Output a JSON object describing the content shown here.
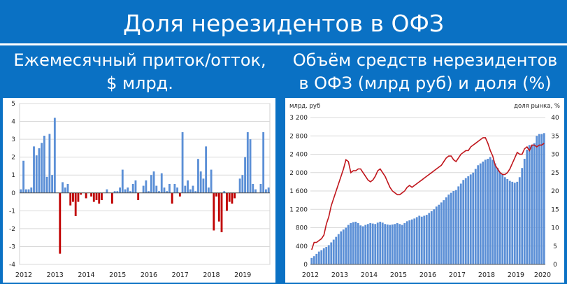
{
  "header": {
    "title": "Доля нерезидентов в ОФЗ",
    "left_subtitle_line1": "Ежемесячный приток/отток,",
    "left_subtitle_line2": "$ млрд.",
    "right_subtitle_line1": "Объём средств нерезидентов",
    "right_subtitle_line2": "в ОФЗ (млрд руб) и доля (%)"
  },
  "colors": {
    "background": "#0a71c4",
    "bar_positive": "#5b8fd6",
    "bar_negative": "#c00000",
    "line": "#c0161c",
    "grid": "#d9d9d9"
  },
  "chart_data": [
    {
      "type": "bar",
      "ylim": [
        -4,
        5
      ],
      "yticks": [
        "5",
        "4",
        "3",
        "2",
        "1",
        "0",
        "-1",
        "-2",
        "-3",
        "-4"
      ],
      "xticks": [
        "2012",
        "2013",
        "2014",
        "2015",
        "2016",
        "2017",
        "2018",
        "2019"
      ],
      "x_start": 2012,
      "grid": true,
      "values": [
        0.2,
        1.8,
        0.2,
        0.2,
        0.3,
        2.6,
        2.1,
        2.5,
        2.8,
        3.2,
        0.9,
        3.3,
        1.0,
        4.2,
        0,
        -3.4,
        0.6,
        0.3,
        0.5,
        -0.7,
        -0.5,
        -1.3,
        -0.5,
        -0.1,
        0,
        -0.3,
        0,
        -0.2,
        -0.5,
        -0.4,
        -0.6,
        -0.4,
        0,
        0.2,
        0,
        -0.6,
        0.1,
        0.1,
        0.3,
        1.3,
        0.2,
        0.3,
        0.1,
        0.5,
        0.7,
        -0.4,
        0,
        0.4,
        0.7,
        0.1,
        1.0,
        1.2,
        0.4,
        0.1,
        1.1,
        0.3,
        0.1,
        0.5,
        -0.6,
        0.5,
        0.3,
        -0.2,
        3.4,
        0.4,
        0.7,
        0.2,
        0.4,
        0.1,
        1.9,
        1.2,
        0.8,
        2.6,
        0.3,
        1.3,
        -2.1,
        -0.2,
        -1.6,
        -2.2,
        0.1,
        -1.0,
        -0.5,
        -0.6,
        -0.3,
        0,
        0.8,
        1.0,
        2.0,
        3.4,
        3.0,
        0.5,
        0.2,
        0,
        0.5,
        3.4,
        0.2,
        0.3
      ]
    },
    {
      "type": "bar+line",
      "ylabel_left": "млрд. руб",
      "ylabel_right": "доля рынка, %",
      "ylim_left": [
        0,
        3200
      ],
      "ylim_right": [
        0,
        40
      ],
      "yticks_left": [
        "3 200",
        "2 800",
        "2 400",
        "2 000",
        "1 600",
        "1 200",
        "800",
        "400",
        "0"
      ],
      "yticks_right": [
        "40",
        "35",
        "30",
        "25",
        "20",
        "15",
        "10",
        "5",
        "0"
      ],
      "xticks": [
        "2012",
        "2013",
        "2014",
        "2015",
        "2016",
        "2017",
        "2018",
        "2019",
        "2020"
      ],
      "x_start": 2012,
      "grid": true,
      "series": [
        {
          "type": "bar",
          "values": [
            140,
            180,
            230,
            280,
            310,
            350,
            380,
            420,
            480,
            540,
            600,
            660,
            720,
            760,
            800,
            860,
            900,
            920,
            930,
            900,
            850,
            830,
            860,
            880,
            900,
            890,
            880,
            910,
            930,
            910,
            880,
            870,
            860,
            870,
            880,
            900,
            880,
            860,
            900,
            940,
            960,
            980,
            1000,
            1030,
            1060,
            1040,
            1060,
            1080,
            1120,
            1160,
            1200,
            1260,
            1300,
            1350,
            1400,
            1460,
            1520,
            1560,
            1600,
            1620,
            1700,
            1760,
            1840,
            1880,
            1920,
            1960,
            2000,
            2080,
            2160,
            2200,
            2240,
            2280,
            2300,
            2340,
            2280,
            2200,
            2100,
            2000,
            1960,
            1900,
            1860,
            1820,
            1800,
            1780,
            1800,
            1900,
            2100,
            2300,
            2500,
            2600,
            2600,
            2640,
            2800,
            2840,
            2840,
            2860
          ]
        },
        {
          "type": "line",
          "values": [
            4,
            6,
            6,
            6.5,
            7,
            8,
            11,
            13,
            16,
            18,
            20,
            22,
            24,
            26,
            28.5,
            28,
            25,
            25.5,
            25.5,
            26,
            26,
            25,
            24,
            23,
            22.5,
            23,
            24,
            25.5,
            26,
            25,
            24,
            22.5,
            21,
            20,
            19.5,
            19,
            19,
            19.5,
            20,
            21,
            21.5,
            21,
            21.5,
            22,
            22.5,
            23,
            23.5,
            24,
            24.5,
            25,
            25.5,
            26,
            26.5,
            27,
            28,
            29,
            29.5,
            29.5,
            28.5,
            28,
            29,
            30,
            30.5,
            31,
            31,
            32,
            32.5,
            33,
            33.5,
            34,
            34.5,
            34.5,
            33,
            31,
            29.5,
            27,
            26,
            25,
            24.5,
            24.5,
            25,
            26,
            27.5,
            29,
            30.5,
            30,
            30,
            31.5,
            32,
            31,
            32.5,
            32.5,
            32,
            32.5,
            32.5,
            33
          ]
        }
      ]
    }
  ]
}
